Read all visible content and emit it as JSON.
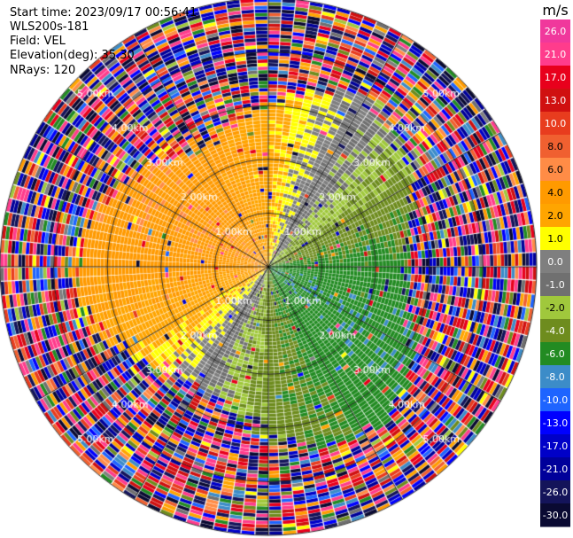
{
  "header": {
    "start_time": "Start time: 2023/09/17 00:56:41",
    "instrument": "WLS200s-181",
    "field": "Field: VEL",
    "elevation": "Elevation(deg): 35.30",
    "nrays": "NRays: 120"
  },
  "chart_data": {
    "type": "heatmap",
    "projection": "polar PPI",
    "field": "VEL",
    "units": "m/s",
    "nrays": 120,
    "range_rings_km": [
      1,
      2,
      3,
      4,
      5
    ],
    "ring_labels": [
      "1.00km",
      "2.00km",
      "3.00km",
      "4.00km",
      "5.00km"
    ],
    "max_range_km": 5,
    "colorbar": {
      "unit_label": "m/s",
      "levels": [
        "26.0",
        "21.0",
        "17.0",
        "13.0",
        "10.0",
        "8.0",
        "6.0",
        "4.0",
        "2.0",
        "1.0",
        "0.0",
        "-1.0",
        "-2.0",
        "-4.0",
        "-6.0",
        "-8.0",
        "-10.0",
        "-13.0",
        "-17.0",
        "-21.0",
        "-26.0",
        "-30.0"
      ],
      "colors": [
        "#f0389c",
        "#ff3c8c",
        "#e8001c",
        "#d01010",
        "#e83c1e",
        "#f06030",
        "#ff8c46",
        "#ff9a00",
        "#ffa500",
        "#ffff00",
        "#7f7f7f",
        "#707070",
        "#a0c83c",
        "#6e8c1e",
        "#228b22",
        "#3c8cc8",
        "#1e64ff",
        "#0000ff",
        "#0000c8",
        "#00009a",
        "#14145a",
        "#0a0a32"
      ]
    }
  }
}
